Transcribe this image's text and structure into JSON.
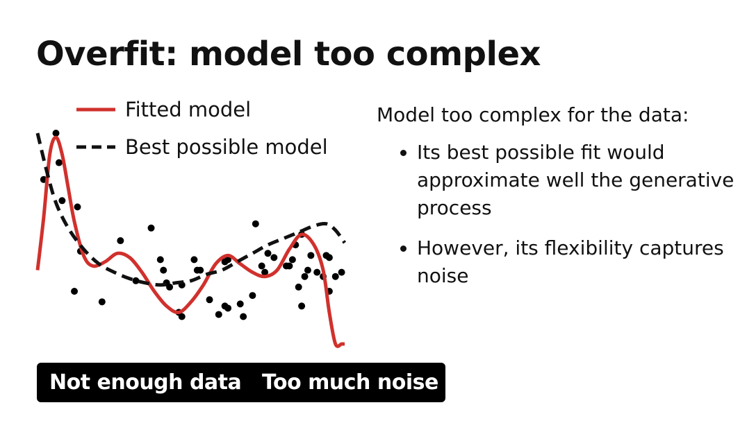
{
  "slide": {
    "title": "Overfit: model too complex"
  },
  "legend": {
    "fitted_label": "Fitted model",
    "best_label": "Best possible model"
  },
  "explanation": {
    "heading": "Model too complex for the data:",
    "bullets": [
      "Its best possible fit would approximate well the generative process",
      "However, its flexibility captures noise"
    ]
  },
  "tags": [
    "Not enough data",
    "Too much noise"
  ],
  "colors": {
    "fitted_model": "#d0312d",
    "best_model": "#111111",
    "points": "#000000",
    "tag_background": "#000000",
    "tag_text": "#ffffff"
  },
  "chart_data": {
    "type": "scatter",
    "x_range": [
      0,
      1
    ],
    "y_range": [
      0,
      1
    ],
    "points": [
      [
        0.02,
        0.22
      ],
      [
        0.06,
        0.0
      ],
      [
        0.07,
        0.14
      ],
      [
        0.08,
        0.32
      ],
      [
        0.13,
        0.35
      ],
      [
        0.14,
        0.56
      ],
      [
        0.12,
        0.75
      ],
      [
        0.21,
        0.8
      ],
      [
        0.27,
        0.51
      ],
      [
        0.32,
        0.7
      ],
      [
        0.37,
        0.45
      ],
      [
        0.4,
        0.6
      ],
      [
        0.41,
        0.65
      ],
      [
        0.42,
        0.71
      ],
      [
        0.43,
        0.73
      ],
      [
        0.46,
        0.85
      ],
      [
        0.47,
        0.87
      ],
      [
        0.47,
        0.72
      ],
      [
        0.51,
        0.6
      ],
      [
        0.52,
        0.65
      ],
      [
        0.53,
        0.65
      ],
      [
        0.56,
        0.79
      ],
      [
        0.59,
        0.86
      ],
      [
        0.61,
        0.82
      ],
      [
        0.62,
        0.83
      ],
      [
        0.61,
        0.61
      ],
      [
        0.62,
        0.6
      ],
      [
        0.66,
        0.81
      ],
      [
        0.67,
        0.87
      ],
      [
        0.7,
        0.77
      ],
      [
        0.73,
        0.63
      ],
      [
        0.75,
        0.57
      ],
      [
        0.77,
        0.59
      ],
      [
        0.81,
        0.63
      ],
      [
        0.82,
        0.63
      ],
      [
        0.83,
        0.6
      ],
      [
        0.84,
        0.53
      ],
      [
        0.86,
        0.48
      ],
      [
        0.74,
        0.66
      ],
      [
        0.71,
        0.43
      ],
      [
        0.85,
        0.73
      ],
      [
        0.86,
        0.82
      ],
      [
        0.87,
        0.68
      ],
      [
        0.95,
        0.59
      ],
      [
        0.94,
        0.58
      ],
      [
        0.88,
        0.65
      ],
      [
        0.89,
        0.58
      ],
      [
        0.95,
        0.75
      ],
      [
        0.97,
        0.68
      ],
      [
        0.99,
        0.66
      ],
      [
        0.91,
        0.66
      ],
      [
        0.93,
        0.68
      ]
    ],
    "series": [
      {
        "name": "Fitted model",
        "style": "solid",
        "x": [
          0.0,
          0.02,
          0.04,
          0.06,
          0.08,
          0.1,
          0.12,
          0.15,
          0.18,
          0.22,
          0.26,
          0.3,
          0.34,
          0.38,
          0.42,
          0.46,
          0.5,
          0.54,
          0.58,
          0.62,
          0.66,
          0.7,
          0.74,
          0.78,
          0.82,
          0.86,
          0.9,
          0.93,
          0.95,
          0.97,
          0.99,
          1.0
        ],
        "y": [
          0.65,
          0.4,
          0.1,
          0.02,
          0.1,
          0.26,
          0.42,
          0.58,
          0.63,
          0.61,
          0.57,
          0.59,
          0.66,
          0.75,
          0.82,
          0.85,
          0.8,
          0.72,
          0.62,
          0.58,
          0.62,
          0.66,
          0.68,
          0.65,
          0.55,
          0.48,
          0.53,
          0.65,
          0.85,
          1.0,
          1.0,
          1.0
        ]
      },
      {
        "name": "Best possible model",
        "style": "dashed",
        "x": [
          0.0,
          0.03,
          0.06,
          0.1,
          0.15,
          0.2,
          0.25,
          0.3,
          0.35,
          0.4,
          0.45,
          0.5,
          0.55,
          0.6,
          0.65,
          0.7,
          0.75,
          0.8,
          0.85,
          0.9,
          0.94,
          0.97,
          1.0
        ],
        "y": [
          0.0,
          0.18,
          0.33,
          0.45,
          0.55,
          0.62,
          0.66,
          0.69,
          0.71,
          0.72,
          0.71,
          0.7,
          0.67,
          0.65,
          0.61,
          0.57,
          0.53,
          0.5,
          0.47,
          0.44,
          0.43,
          0.46,
          0.52
        ]
      }
    ]
  }
}
